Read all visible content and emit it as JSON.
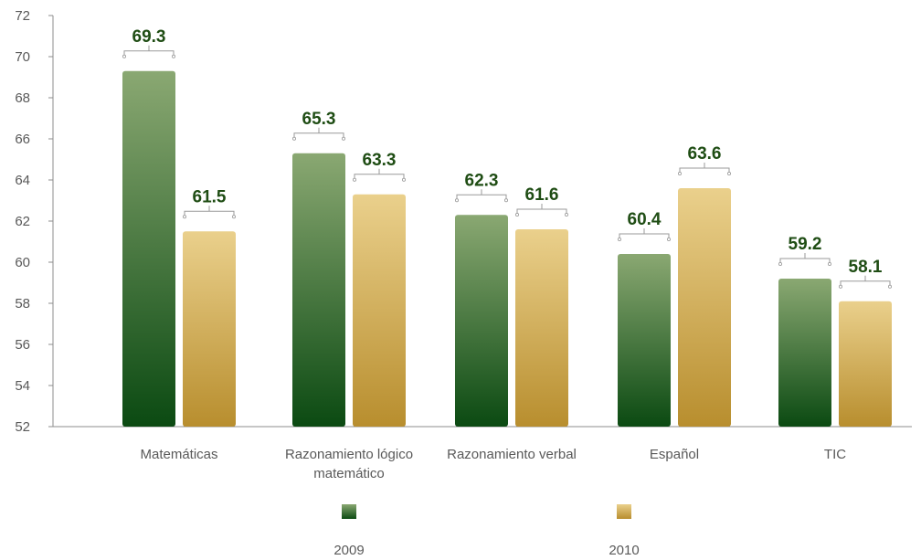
{
  "chart_data": {
    "type": "bar",
    "categories": [
      [
        "Matemáticas"
      ],
      [
        "Razonamiento lógico",
        "matemático"
      ],
      [
        "Razonamiento verbal"
      ],
      [
        "Español"
      ],
      [
        "TIC"
      ]
    ],
    "series": [
      {
        "name": "2009",
        "values": [
          69.3,
          65.3,
          62.3,
          60.4,
          59.2
        ]
      },
      {
        "name": "2010",
        "values": [
          61.5,
          63.3,
          61.6,
          63.6,
          58.1
        ]
      }
    ],
    "ylim": [
      52,
      72
    ],
    "yticks": [
      "52",
      "54",
      "56",
      "58",
      "60",
      "62",
      "64",
      "66",
      "68",
      "70",
      "72"
    ],
    "value_labels": [
      [
        "69.3",
        "65.3",
        "62.3",
        "60.4",
        "59.2"
      ],
      [
        "61.5",
        "63.3",
        "61.6",
        "63.6",
        "58.1"
      ]
    ],
    "legend_position": "bottom",
    "grid": false,
    "colors": {
      "series_2009_top": "#8aa872",
      "series_2009_bottom": "#0b4a12",
      "series_2010_top": "#ead08c",
      "series_2010_bottom": "#b88e2e",
      "value_label": "#1f4d14",
      "axis": "#8c8c8c",
      "text": "#595959"
    }
  }
}
